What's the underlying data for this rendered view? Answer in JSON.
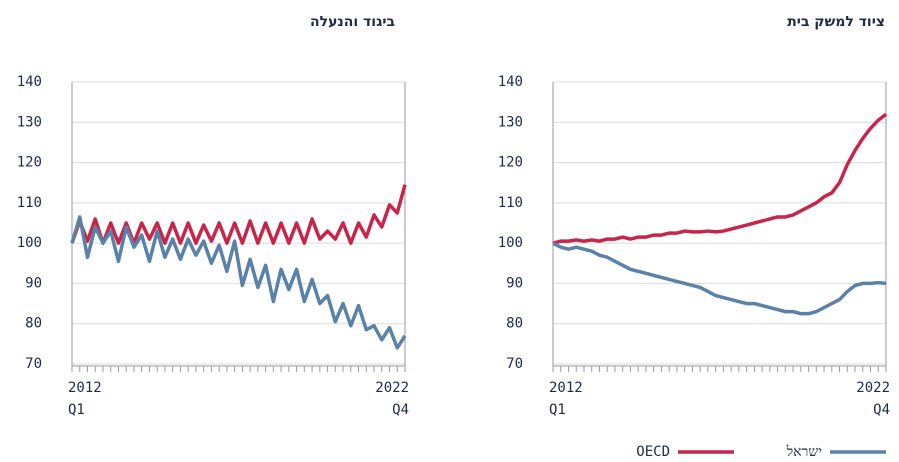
{
  "chart_data": [
    {
      "type": "line",
      "title": "ביגוד והנעלה",
      "categories": [
        "2012",
        null,
        null,
        null,
        null,
        null,
        null,
        null,
        null,
        null,
        null,
        null,
        null,
        null,
        null,
        null,
        null,
        null,
        null,
        null,
        null,
        null,
        null,
        null,
        null,
        null,
        null,
        null,
        null,
        null,
        null,
        null,
        null,
        null,
        null,
        null,
        null,
        null,
        null,
        null,
        null,
        null,
        null,
        "2022"
      ],
      "quarters": [
        "Q1",
        null,
        null,
        null,
        null,
        null,
        null,
        null,
        null,
        null,
        null,
        null,
        null,
        null,
        null,
        null,
        null,
        null,
        null,
        null,
        null,
        null,
        null,
        null,
        null,
        null,
        null,
        null,
        null,
        null,
        null,
        null,
        null,
        null,
        null,
        null,
        null,
        null,
        null,
        null,
        null,
        null,
        null,
        "Q4"
      ],
      "ylim": [
        70,
        140
      ],
      "yticks": [
        70,
        80,
        90,
        100,
        110,
        120,
        130,
        140
      ],
      "grid": true,
      "series": [
        {
          "color": "#c8254a",
          "values": [
            100,
            105.5,
            100.5,
            106,
            100,
            105,
            100,
            105,
            100,
            105,
            101,
            105,
            100,
            105,
            100,
            105,
            100,
            104.5,
            100.5,
            105,
            100,
            105,
            100,
            105.5,
            100,
            105,
            100,
            105,
            100,
            105,
            100,
            106,
            101,
            103,
            101,
            105,
            100,
            105,
            101.5,
            107,
            104,
            109.5,
            107.5,
            114.5
          ]
        },
        {
          "color": "#5a82a8",
          "values": [
            100,
            106.5,
            96.5,
            104,
            100,
            103,
            95.5,
            104,
            99,
            102,
            95.5,
            103,
            96.5,
            101,
            96,
            101,
            97,
            100.5,
            95,
            99.5,
            93,
            100.5,
            89.5,
            96,
            89,
            94.5,
            85.5,
            93.5,
            88.5,
            93.5,
            85.5,
            91,
            85,
            87,
            80.5,
            85,
            79.5,
            84.5,
            78.5,
            79.5,
            76,
            79,
            74,
            77
          ]
        }
      ]
    },
    {
      "type": "line",
      "title": "ציוד למשק בית",
      "categories": [
        "2012",
        null,
        null,
        null,
        null,
        null,
        null,
        null,
        null,
        null,
        null,
        null,
        null,
        null,
        null,
        null,
        null,
        null,
        null,
        null,
        null,
        null,
        null,
        null,
        null,
        null,
        null,
        null,
        null,
        null,
        null,
        null,
        null,
        null,
        null,
        null,
        null,
        null,
        null,
        null,
        null,
        null,
        null,
        "2022"
      ],
      "quarters": [
        "Q1",
        null,
        null,
        null,
        null,
        null,
        null,
        null,
        null,
        null,
        null,
        null,
        null,
        null,
        null,
        null,
        null,
        null,
        null,
        null,
        null,
        null,
        null,
        null,
        null,
        null,
        null,
        null,
        null,
        null,
        null,
        null,
        null,
        null,
        null,
        null,
        null,
        null,
        null,
        null,
        null,
        null,
        null,
        "Q4"
      ],
      "ylim": [
        70,
        140
      ],
      "yticks": [
        70,
        80,
        90,
        100,
        110,
        120,
        130,
        140
      ],
      "grid": true,
      "series": [
        {
          "name": "OECD",
          "color": "#c8254a",
          "values": [
            100,
            100.5,
            100.5,
            100.8,
            100.5,
            100.8,
            100.5,
            101,
            101,
            101.5,
            101,
            101.5,
            101.5,
            102,
            102,
            102.5,
            102.5,
            103,
            102.8,
            102.8,
            103,
            102.8,
            103,
            103.5,
            104,
            104.5,
            105,
            105.5,
            106,
            106.5,
            106.5,
            107,
            108,
            109,
            110,
            111.5,
            112.5,
            115,
            119.5,
            123,
            126,
            128.5,
            130.5,
            132
          ]
        },
        {
          "name": "ישראל",
          "color": "#5a82a8",
          "values": [
            100,
            99,
            98.5,
            99,
            98.5,
            98,
            97,
            96.5,
            95.5,
            94.5,
            93.5,
            93,
            92.5,
            92,
            91.5,
            91,
            90.5,
            90,
            89.5,
            89,
            88,
            87,
            86.5,
            86,
            85.5,
            85,
            85,
            84.5,
            84,
            83.5,
            83,
            83,
            82.5,
            82.5,
            83,
            84,
            85,
            86,
            88,
            89.5,
            90,
            90,
            90.2,
            90
          ]
        }
      ]
    }
  ]
}
